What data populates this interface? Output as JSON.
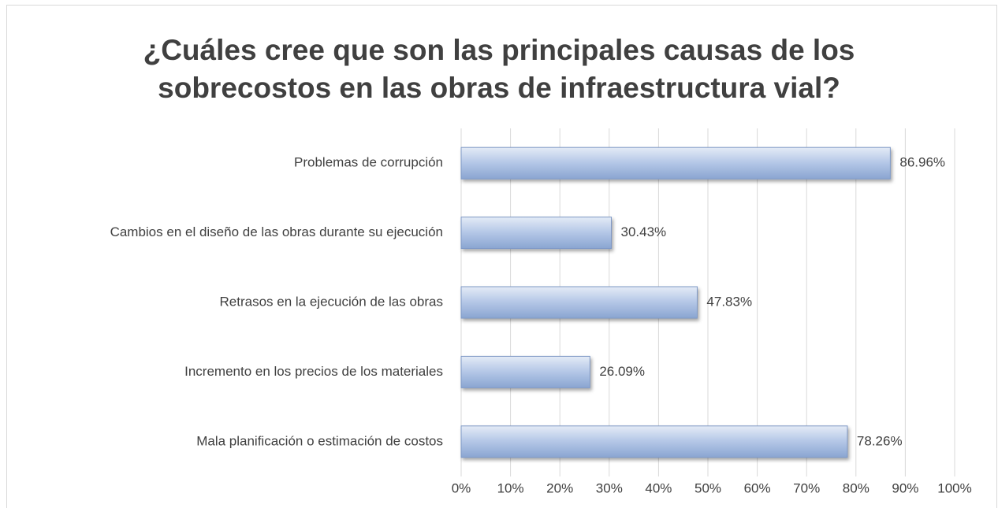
{
  "chart_data": {
    "type": "barh",
    "title": [
      "¿Cuáles cree que son las principales causas de los",
      "sobrecostos en las obras de infraestructura vial?"
    ],
    "categories": [
      "Problemas de corrupción",
      "Cambios en el diseño de las obras durante su ejecución",
      "Retrasos en la ejecución de las obras",
      "Incremento en los precios de los materiales",
      "Mala planificación o estimación de costos"
    ],
    "values": [
      86.96,
      30.43,
      47.83,
      26.09,
      78.26
    ],
    "value_labels": [
      "86.96%",
      "30.43%",
      "47.83%",
      "26.09%",
      "78.26%"
    ],
    "color": "#9fb6dc",
    "xlim": [
      0,
      100
    ],
    "xticks": [
      {
        "value": 0,
        "label": "0%"
      },
      {
        "value": 10,
        "label": "10%"
      },
      {
        "value": 20,
        "label": "20%"
      },
      {
        "value": 30,
        "label": "30%"
      },
      {
        "value": 40,
        "label": "40%"
      },
      {
        "value": 50,
        "label": "50%"
      },
      {
        "value": 60,
        "label": "60%"
      },
      {
        "value": 70,
        "label": "70%"
      },
      {
        "value": 80,
        "label": "80%"
      },
      {
        "value": 90,
        "label": "90%"
      },
      {
        "value": 100,
        "label": "100%"
      }
    ],
    "grid": true
  }
}
